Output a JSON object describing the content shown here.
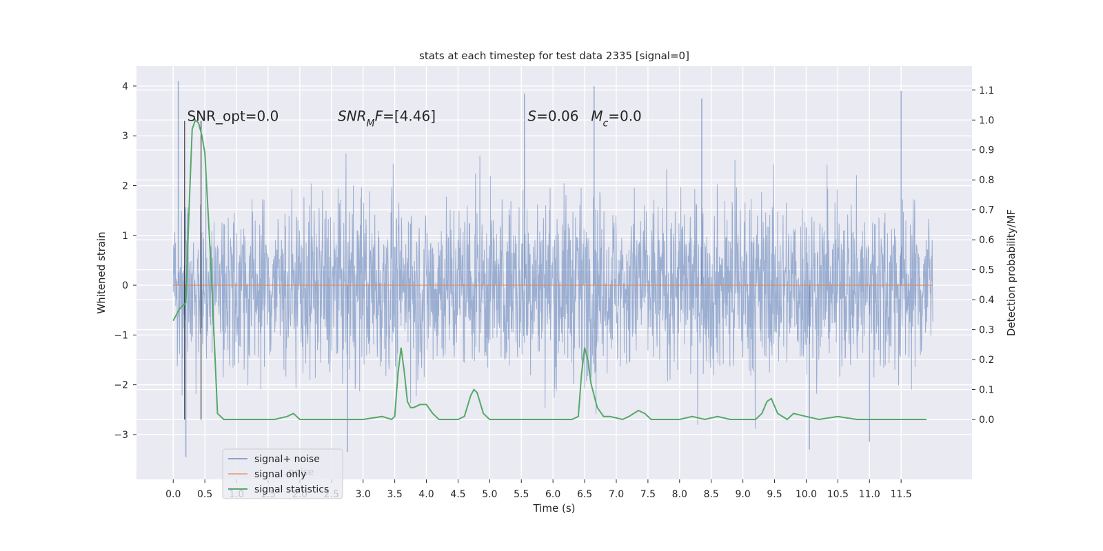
{
  "chart_data": {
    "type": "line",
    "title": "stats at each timestep for test data 2335 [signal=0]",
    "xlabel": "Time (s)",
    "ylabel": "Whitened strain",
    "y2label": "Detection probability/MF",
    "xlim": [
      -0.58,
      12.62
    ],
    "ylim": [
      -3.9,
      4.4
    ],
    "y2lim": [
      -0.2,
      1.18
    ],
    "xticks": [
      0.0,
      0.5,
      1.0,
      1.5,
      2.0,
      2.5,
      3.0,
      3.5,
      4.0,
      4.5,
      5.0,
      5.5,
      6.0,
      6.5,
      7.0,
      7.5,
      8.0,
      8.5,
      9.0,
      9.5,
      10.0,
      10.5,
      11.0,
      11.5
    ],
    "xtick_labels": [
      "0.0",
      "0.5",
      "1.0",
      "1.5",
      "2.0",
      "2.5",
      "3.0",
      "3.5",
      "4.0",
      "4.5",
      "5.0",
      "5.5",
      "6.0",
      "6.5",
      "7.0",
      "7.5",
      "8.0",
      "8.5",
      "9.0",
      "9.5",
      "10.0",
      "10.5",
      "11.0",
      "11.5"
    ],
    "yticks": [
      -3,
      -2,
      -1,
      0,
      1,
      2,
      3,
      4
    ],
    "ytick_labels": [
      "−3",
      "−2",
      "−1",
      "0",
      "1",
      "2",
      "3",
      "4"
    ],
    "y2ticks": [
      0.0,
      0.1,
      0.2,
      0.3,
      0.4,
      0.5,
      0.6,
      0.7,
      0.8,
      0.9,
      1.0,
      1.1
    ],
    "y2tick_labels": [
      "0.0",
      "0.1",
      "0.2",
      "0.3",
      "0.4",
      "0.5",
      "0.6",
      "0.7",
      "0.8",
      "0.9",
      "1.0",
      "1.1"
    ],
    "grid": true,
    "legend_position": "lower-left",
    "series": [
      {
        "name": "signal+ noise",
        "color": "#4c72b0",
        "kind": "noise",
        "x_range": [
          0.0,
          12.0
        ],
        "amplitude_envelope": [
          -3.4,
          4.1
        ],
        "notable_peaks": [
          {
            "x": 0.08,
            "y": 4.1
          },
          {
            "x": 6.65,
            "y": 4.0
          },
          {
            "x": 11.5,
            "y": 3.9
          },
          {
            "x": 5.55,
            "y": 3.85
          },
          {
            "x": 8.35,
            "y": 3.75
          },
          {
            "x": 0.2,
            "y": -3.45
          },
          {
            "x": 2.75,
            "y": -3.35
          },
          {
            "x": 10.05,
            "y": -3.3
          },
          {
            "x": 11.0,
            "y": -3.15
          }
        ]
      },
      {
        "name": "signal only",
        "color": "#dd8452",
        "x": [
          0.0,
          12.0
        ],
        "y": [
          0.0,
          0.0
        ]
      },
      {
        "name": "signal statistics",
        "color": "#55a868",
        "axis": "right",
        "x": [
          0.0,
          0.1,
          0.2,
          0.25,
          0.3,
          0.35,
          0.4,
          0.45,
          0.5,
          0.6,
          0.7,
          0.8,
          1.0,
          1.3,
          1.6,
          1.8,
          1.9,
          2.0,
          2.5,
          3.0,
          3.3,
          3.45,
          3.5,
          3.55,
          3.6,
          3.65,
          3.7,
          3.75,
          3.8,
          3.9,
          4.0,
          4.1,
          4.2,
          4.3,
          4.5,
          4.6,
          4.7,
          4.75,
          4.8,
          4.9,
          5.0,
          5.2,
          5.4,
          5.5,
          5.6,
          5.8,
          6.0,
          6.3,
          6.4,
          6.45,
          6.5,
          6.55,
          6.6,
          6.7,
          6.8,
          6.9,
          7.1,
          7.2,
          7.35,
          7.45,
          7.55,
          7.7,
          8.0,
          8.2,
          8.4,
          8.6,
          8.8,
          9.2,
          9.3,
          9.38,
          9.45,
          9.55,
          9.7,
          9.8,
          10.0,
          10.2,
          10.5,
          10.8,
          11.0,
          11.5,
          11.9
        ],
        "y": [
          0.33,
          0.37,
          0.39,
          0.7,
          0.97,
          1.0,
          0.99,
          0.95,
          0.89,
          0.5,
          0.02,
          0.0,
          0.0,
          0.0,
          0.0,
          0.01,
          0.02,
          0.0,
          0.0,
          0.0,
          0.01,
          0.0,
          0.01,
          0.15,
          0.24,
          0.16,
          0.06,
          0.04,
          0.04,
          0.05,
          0.05,
          0.02,
          0.0,
          0.0,
          0.0,
          0.01,
          0.08,
          0.1,
          0.09,
          0.02,
          0.0,
          0.0,
          0.0,
          0.0,
          0.0,
          0.0,
          0.0,
          0.0,
          0.01,
          0.15,
          0.24,
          0.2,
          0.12,
          0.04,
          0.01,
          0.01,
          0.0,
          0.01,
          0.03,
          0.02,
          0.0,
          0.0,
          0.0,
          0.01,
          0.0,
          0.01,
          0.0,
          0.0,
          0.02,
          0.06,
          0.07,
          0.02,
          0.0,
          0.02,
          0.01,
          0.0,
          0.01,
          0.0,
          0.0,
          0.0,
          0.0
        ]
      }
    ],
    "vlines": [
      {
        "x": 0.18,
        "y_from": -2.7,
        "y_to": 3.3,
        "color": "#000000"
      },
      {
        "x": 0.44,
        "y_from": -2.7,
        "y_to": 3.3,
        "color": "#000000"
      }
    ],
    "annotations": [
      {
        "id": "snr-opt",
        "x": 0.22,
        "y": 3.3,
        "parts": [
          {
            "t": "SNR_opt=0.0"
          }
        ]
      },
      {
        "id": "snr-mf",
        "x": 2.6,
        "y": 3.3,
        "parts": [
          {
            "t": "SNR",
            "it": true
          },
          {
            "t": "M",
            "it": true,
            "sub": true
          },
          {
            "t": "F",
            "it": true
          },
          {
            "t": "=[4.46]"
          }
        ]
      },
      {
        "id": "s-val",
        "x": 5.6,
        "y": 3.3,
        "parts": [
          {
            "t": "S",
            "it": true
          },
          {
            "t": "=0.06"
          }
        ]
      },
      {
        "id": "mc-val",
        "x": 6.6,
        "y": 3.3,
        "parts": [
          {
            "t": "M",
            "it": true
          },
          {
            "t": "c",
            "it": true,
            "sub": true
          },
          {
            "t": "=0.0"
          }
        ]
      }
    ],
    "legend": {
      "entries": [
        {
          "label": "signal+ noise",
          "color": "#4c72b0"
        },
        {
          "label": "signal only",
          "color": "#dd8452"
        },
        {
          "label": "signal statistics",
          "color": "#55a868"
        }
      ],
      "shadow_text": "noise"
    }
  }
}
